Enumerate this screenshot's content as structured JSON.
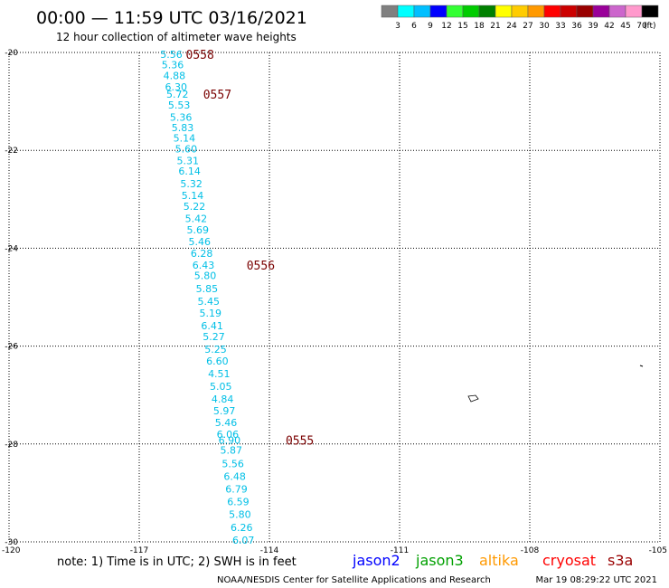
{
  "header": {
    "title": "00:00 — 11:59 UTC 03/16/2021",
    "subtitle": "12 hour collection of altimeter wave heights"
  },
  "colorbar": {
    "labels": [
      "3",
      "6",
      "9",
      "12",
      "15",
      "18",
      "21",
      "24",
      "27",
      "30",
      "33",
      "36",
      "39",
      "42",
      "45",
      "70"
    ],
    "unit": "(ft)",
    "colors": [
      "#808080",
      "#00ffff",
      "#00bfff",
      "#0000ff",
      "#33ff33",
      "#00cc00",
      "#008000",
      "#ffff00",
      "#ffcc00",
      "#ff9900",
      "#ff0000",
      "#cc0000",
      "#990000",
      "#990099",
      "#cc66cc",
      "#ff99cc",
      "#000000"
    ]
  },
  "footer": {
    "note": "note: 1) Time is in UTC; 2) SWH is in feet",
    "credit": "NOAA/NESDIS Center for Satellite Applications and Research",
    "timestamp": "Mar 19 08:29:22 UTC 2021",
    "satellites": [
      {
        "name": "jason2",
        "color": "#0000ff"
      },
      {
        "name": "jason3",
        "color": "#00a000"
      },
      {
        "name": "altika",
        "color": "#ff9900"
      },
      {
        "name": "cryosat",
        "color": "#ff0000"
      },
      {
        "name": "s3a",
        "color": "#990000"
      }
    ]
  },
  "chart_data": {
    "type": "scatter",
    "title": "00:00 — 11:59 UTC 03/16/2021",
    "xlim": [
      -120,
      -105
    ],
    "ylim": [
      -30,
      -20
    ],
    "x_ticks": [
      "-120",
      "-117",
      "-114",
      "-111",
      "-108",
      "-105"
    ],
    "x_tick_values": [
      -120,
      -117,
      -114,
      -111,
      -108,
      -105
    ],
    "y_ticks": [
      "-20",
      "-22",
      "-24",
      "-26",
      "-28",
      "-30"
    ],
    "y_tick_values": [
      -20,
      -22,
      -24,
      -26,
      -28,
      -30
    ],
    "grid": true,
    "point_color": "#00bfe6",
    "points": [
      {
        "lon": -116.26,
        "lat": -20.04,
        "swh": "5.56"
      },
      {
        "lon": -116.23,
        "lat": -20.25,
        "swh": "5.36"
      },
      {
        "lon": -116.19,
        "lat": -20.47,
        "swh": "4.88"
      },
      {
        "lon": -116.15,
        "lat": -20.7,
        "swh": "6.30"
      },
      {
        "lon": -116.12,
        "lat": -20.85,
        "swh": "5.72"
      },
      {
        "lon": -116.08,
        "lat": -21.07,
        "swh": "5.53"
      },
      {
        "lon": -116.04,
        "lat": -21.32,
        "swh": "5.36"
      },
      {
        "lon": -116.0,
        "lat": -21.53,
        "swh": "5.83"
      },
      {
        "lon": -115.96,
        "lat": -21.75,
        "swh": "5.14"
      },
      {
        "lon": -115.92,
        "lat": -21.97,
        "swh": "5.60"
      },
      {
        "lon": -115.88,
        "lat": -22.21,
        "swh": "5.31"
      },
      {
        "lon": -115.84,
        "lat": -22.42,
        "swh": "6.14"
      },
      {
        "lon": -115.8,
        "lat": -22.68,
        "swh": "5.32"
      },
      {
        "lon": -115.77,
        "lat": -22.92,
        "swh": "5.14"
      },
      {
        "lon": -115.73,
        "lat": -23.14,
        "swh": "5.22"
      },
      {
        "lon": -115.69,
        "lat": -23.39,
        "swh": "5.42"
      },
      {
        "lon": -115.65,
        "lat": -23.62,
        "swh": "5.69"
      },
      {
        "lon": -115.61,
        "lat": -23.86,
        "swh": "5.46"
      },
      {
        "lon": -115.56,
        "lat": -24.1,
        "swh": "6.28"
      },
      {
        "lon": -115.52,
        "lat": -24.34,
        "swh": "6.43"
      },
      {
        "lon": -115.48,
        "lat": -24.56,
        "swh": "5.80"
      },
      {
        "lon": -115.44,
        "lat": -24.82,
        "swh": "5.85"
      },
      {
        "lon": -115.4,
        "lat": -25.08,
        "swh": "5.45"
      },
      {
        "lon": -115.36,
        "lat": -25.32,
        "swh": "5.19"
      },
      {
        "lon": -115.32,
        "lat": -25.58,
        "swh": "6.41"
      },
      {
        "lon": -115.28,
        "lat": -25.8,
        "swh": "5.27"
      },
      {
        "lon": -115.24,
        "lat": -26.06,
        "swh": "5.25"
      },
      {
        "lon": -115.2,
        "lat": -26.3,
        "swh": "6.60"
      },
      {
        "lon": -115.16,
        "lat": -26.56,
        "swh": "4.51"
      },
      {
        "lon": -115.12,
        "lat": -26.82,
        "swh": "5.05"
      },
      {
        "lon": -115.08,
        "lat": -27.08,
        "swh": "4.84"
      },
      {
        "lon": -115.04,
        "lat": -27.32,
        "swh": "5.97"
      },
      {
        "lon": -115.0,
        "lat": -27.56,
        "swh": "5.46"
      },
      {
        "lon": -114.96,
        "lat": -27.8,
        "swh": "6.06"
      },
      {
        "lon": -114.92,
        "lat": -27.92,
        "swh": "6.90"
      },
      {
        "lon": -114.88,
        "lat": -28.12,
        "swh": "5.87"
      },
      {
        "lon": -114.84,
        "lat": -28.4,
        "swh": "5.56"
      },
      {
        "lon": -114.8,
        "lat": -28.66,
        "swh": "6.48"
      },
      {
        "lon": -114.76,
        "lat": -28.92,
        "swh": "6.79"
      },
      {
        "lon": -114.72,
        "lat": -29.18,
        "swh": "6.59"
      },
      {
        "lon": -114.68,
        "lat": -29.44,
        "swh": "5.80"
      },
      {
        "lon": -114.64,
        "lat": -29.7,
        "swh": "6.26"
      },
      {
        "lon": -114.6,
        "lat": -29.96,
        "swh": "6.07"
      }
    ],
    "pass_labels": [
      {
        "lon": -115.6,
        "lat": -20.04,
        "text": "0558"
      },
      {
        "lon": -115.2,
        "lat": -20.85,
        "text": "0557"
      },
      {
        "lon": -114.2,
        "lat": -24.34,
        "text": "0556"
      },
      {
        "lon": -113.3,
        "lat": -27.92,
        "text": "0555"
      }
    ]
  }
}
